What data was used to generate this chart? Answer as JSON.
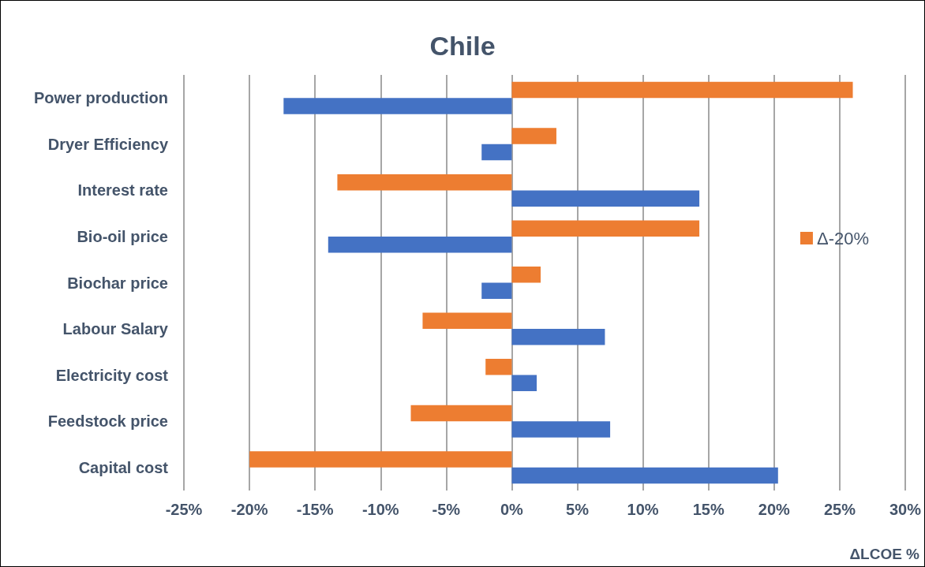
{
  "chart_data": {
    "type": "bar",
    "orientation": "horizontal",
    "title": "Chile",
    "xlabel": "ΔLCOE %",
    "categories": [
      "Power production",
      "Dryer Efficiency",
      "Interest rate",
      "Bio-oil price",
      "Biochar price",
      "Labour Salary",
      "Electricity cost",
      "Feedstock price",
      "Capital cost"
    ],
    "series": [
      {
        "name": "Δ-20%",
        "color": "#ed7d31",
        "values": [
          26,
          3.4,
          -13.3,
          14.3,
          2.2,
          -6.8,
          -2.0,
          -7.7,
          -20
        ]
      },
      {
        "color": "#4472c4",
        "values": [
          -17.4,
          -2.3,
          14.3,
          -14.0,
          -2.3,
          7.1,
          1.9,
          7.5,
          20.3
        ]
      }
    ],
    "xlim": [
      -25,
      30
    ],
    "xticks": [
      {
        "value": -25,
        "label": "-25%"
      },
      {
        "value": -20,
        "label": "-20%"
      },
      {
        "value": -15,
        "label": "-15%"
      },
      {
        "value": -10,
        "label": "-10%"
      },
      {
        "value": -5,
        "label": "-5%"
      },
      {
        "value": 0,
        "label": "0%"
      },
      {
        "value": 5,
        "label": "5%"
      },
      {
        "value": 10,
        "label": "10%"
      },
      {
        "value": 15,
        "label": "15%"
      },
      {
        "value": 20,
        "label": "20%"
      },
      {
        "value": 25,
        "label": "25%"
      },
      {
        "value": 30,
        "label": "30%"
      }
    ],
    "grid": "x",
    "legend": "right"
  }
}
